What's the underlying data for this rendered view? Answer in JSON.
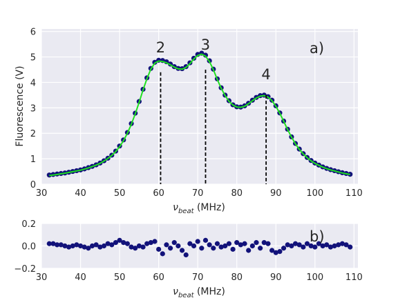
{
  "chart_data": [
    {
      "type": "scatter",
      "panel_label": "a)",
      "xlabel_symbol": "ν",
      "xlabel_sub": "beat",
      "xlabel_unit": " (MHz)",
      "ylabel": "Fluorescence (V)",
      "xlim": [
        30,
        111
      ],
      "ylim": [
        0,
        6.1
      ],
      "xticks": [
        30,
        40,
        50,
        60,
        70,
        80,
        90,
        100,
        110
      ],
      "yticks": [
        0,
        1,
        2,
        3,
        4,
        5,
        6
      ],
      "grid": true,
      "colors": {
        "background": "#eaeaf2",
        "points": "#12127a",
        "fit": "#20e020",
        "markers": "#000000"
      },
      "series": [
        {
          "kind": "points",
          "x": [
            32,
            33,
            34,
            35,
            36,
            37,
            38,
            39,
            40,
            41,
            42,
            43,
            44,
            45,
            46,
            47,
            48,
            49,
            50,
            51,
            52,
            53,
            54,
            55,
            56,
            57,
            58,
            59,
            60,
            61,
            62,
            63,
            64,
            65,
            66,
            67,
            68,
            69,
            70,
            71,
            72,
            73,
            74,
            75,
            76,
            77,
            78,
            79,
            80,
            81,
            82,
            83,
            84,
            85,
            86,
            87,
            88,
            89,
            90,
            91,
            92,
            93,
            94,
            95,
            96,
            97,
            98,
            99,
            100,
            101,
            102,
            103,
            104,
            105,
            106,
            107,
            108,
            109
          ],
          "y": [
            0.36,
            0.38,
            0.4,
            0.42,
            0.44,
            0.47,
            0.5,
            0.53,
            0.56,
            0.6,
            0.65,
            0.7,
            0.76,
            0.83,
            0.92,
            1.02,
            1.14,
            1.3,
            1.5,
            1.74,
            2.03,
            2.38,
            2.79,
            3.25,
            3.73,
            4.18,
            4.55,
            4.79,
            4.87,
            4.86,
            4.81,
            4.72,
            4.62,
            4.55,
            4.54,
            4.62,
            4.77,
            4.95,
            5.1,
            5.15,
            5.07,
            4.85,
            4.52,
            4.14,
            3.79,
            3.5,
            3.28,
            3.12,
            3.04,
            3.03,
            3.08,
            3.18,
            3.3,
            3.41,
            3.48,
            3.5,
            3.44,
            3.3,
            3.08,
            2.8,
            2.48,
            2.16,
            1.86,
            1.6,
            1.38,
            1.2,
            1.05,
            0.93,
            0.83,
            0.75,
            0.68,
            0.62,
            0.57,
            0.53,
            0.49,
            0.45,
            0.42,
            0.39
          ]
        },
        {
          "kind": "line",
          "x": [
            32,
            33,
            34,
            35,
            36,
            37,
            38,
            39,
            40,
            41,
            42,
            43,
            44,
            45,
            46,
            47,
            48,
            49,
            50,
            51,
            52,
            53,
            54,
            55,
            56,
            57,
            58,
            59,
            60,
            61,
            62,
            63,
            64,
            65,
            66,
            67,
            68,
            69,
            70,
            71,
            72,
            73,
            74,
            75,
            76,
            77,
            78,
            79,
            80,
            81,
            82,
            83,
            84,
            85,
            86,
            87,
            88,
            89,
            90,
            91,
            92,
            93,
            94,
            95,
            96,
            97,
            98,
            99,
            100,
            101,
            102,
            103,
            104,
            105,
            106,
            107,
            108,
            109
          ],
          "y": [
            0.34,
            0.36,
            0.38,
            0.41,
            0.43,
            0.46,
            0.49,
            0.52,
            0.55,
            0.59,
            0.64,
            0.69,
            0.75,
            0.82,
            0.91,
            1.01,
            1.13,
            1.28,
            1.47,
            1.71,
            2.0,
            2.35,
            2.76,
            3.22,
            3.7,
            4.15,
            4.52,
            4.76,
            4.84,
            4.82,
            4.77,
            4.69,
            4.6,
            4.53,
            4.52,
            4.59,
            4.74,
            4.92,
            5.06,
            5.11,
            5.03,
            4.82,
            4.5,
            4.12,
            3.77,
            3.48,
            3.26,
            3.11,
            3.03,
            3.02,
            3.06,
            3.16,
            3.28,
            3.39,
            3.46,
            3.48,
            3.42,
            3.28,
            3.06,
            2.79,
            2.47,
            2.15,
            1.85,
            1.59,
            1.37,
            1.19,
            1.04,
            0.92,
            0.82,
            0.74,
            0.67,
            0.61,
            0.56,
            0.52,
            0.48,
            0.44,
            0.41,
            0.38
          ]
        }
      ],
      "annotations": [
        {
          "label": "2",
          "x": 60.5,
          "y_top": 4.4
        },
        {
          "label": "3",
          "x": 72.0,
          "y_top": 4.5
        },
        {
          "label": "4",
          "x": 87.5,
          "y_top": 3.5
        }
      ]
    },
    {
      "type": "scatter",
      "panel_label": "b)",
      "xlabel_symbol": "ν",
      "xlabel_sub": "beat",
      "xlabel_unit": " (MHz)",
      "xlim": [
        30,
        111
      ],
      "ylim": [
        -0.2,
        0.2
      ],
      "xticks": [
        30,
        40,
        50,
        60,
        70,
        80,
        90,
        100,
        110
      ],
      "yticks": [
        -0.2,
        0.0,
        0.2
      ],
      "ytick_labels": [
        "−0.2",
        "0.0",
        "0.2"
      ],
      "grid": true,
      "colors": {
        "background": "#eaeaf2",
        "points": "#12127a"
      },
      "series": [
        {
          "kind": "points",
          "x": [
            32,
            33,
            34,
            35,
            36,
            37,
            38,
            39,
            40,
            41,
            42,
            43,
            44,
            45,
            46,
            47,
            48,
            49,
            50,
            51,
            52,
            53,
            54,
            55,
            56,
            57,
            58,
            59,
            60,
            61,
            62,
            63,
            64,
            65,
            66,
            67,
            68,
            69,
            70,
            71,
            72,
            73,
            74,
            75,
            76,
            77,
            78,
            79,
            80,
            81,
            82,
            83,
            84,
            85,
            86,
            87,
            88,
            89,
            90,
            91,
            92,
            93,
            94,
            95,
            96,
            97,
            98,
            99,
            100,
            101,
            102,
            103,
            104,
            105,
            106,
            107,
            108,
            109
          ],
          "y": [
            0.02,
            0.02,
            0.01,
            0.01,
            0.0,
            -0.01,
            0.0,
            0.01,
            0.0,
            -0.01,
            -0.02,
            0.0,
            0.01,
            -0.01,
            0.0,
            0.02,
            0.01,
            0.03,
            0.05,
            0.03,
            0.02,
            -0.01,
            -0.02,
            0.0,
            -0.01,
            0.02,
            0.03,
            0.04,
            -0.03,
            -0.07,
            0.01,
            -0.02,
            0.03,
            0.0,
            -0.04,
            -0.08,
            0.02,
            0.0,
            0.04,
            -0.02,
            0.05,
            0.01,
            -0.02,
            0.02,
            -0.01,
            0.0,
            0.02,
            -0.03,
            0.03,
            0.01,
            0.02,
            -0.04,
            0.0,
            0.03,
            -0.02,
            0.03,
            0.02,
            -0.04,
            -0.06,
            -0.05,
            -0.02,
            0.01,
            0.0,
            0.02,
            0.01,
            -0.01,
            0.02,
            0.0,
            -0.01,
            0.02,
            0.0,
            0.01,
            -0.01,
            0.0,
            0.01,
            0.02,
            0.01,
            -0.01
          ]
        }
      ]
    }
  ]
}
